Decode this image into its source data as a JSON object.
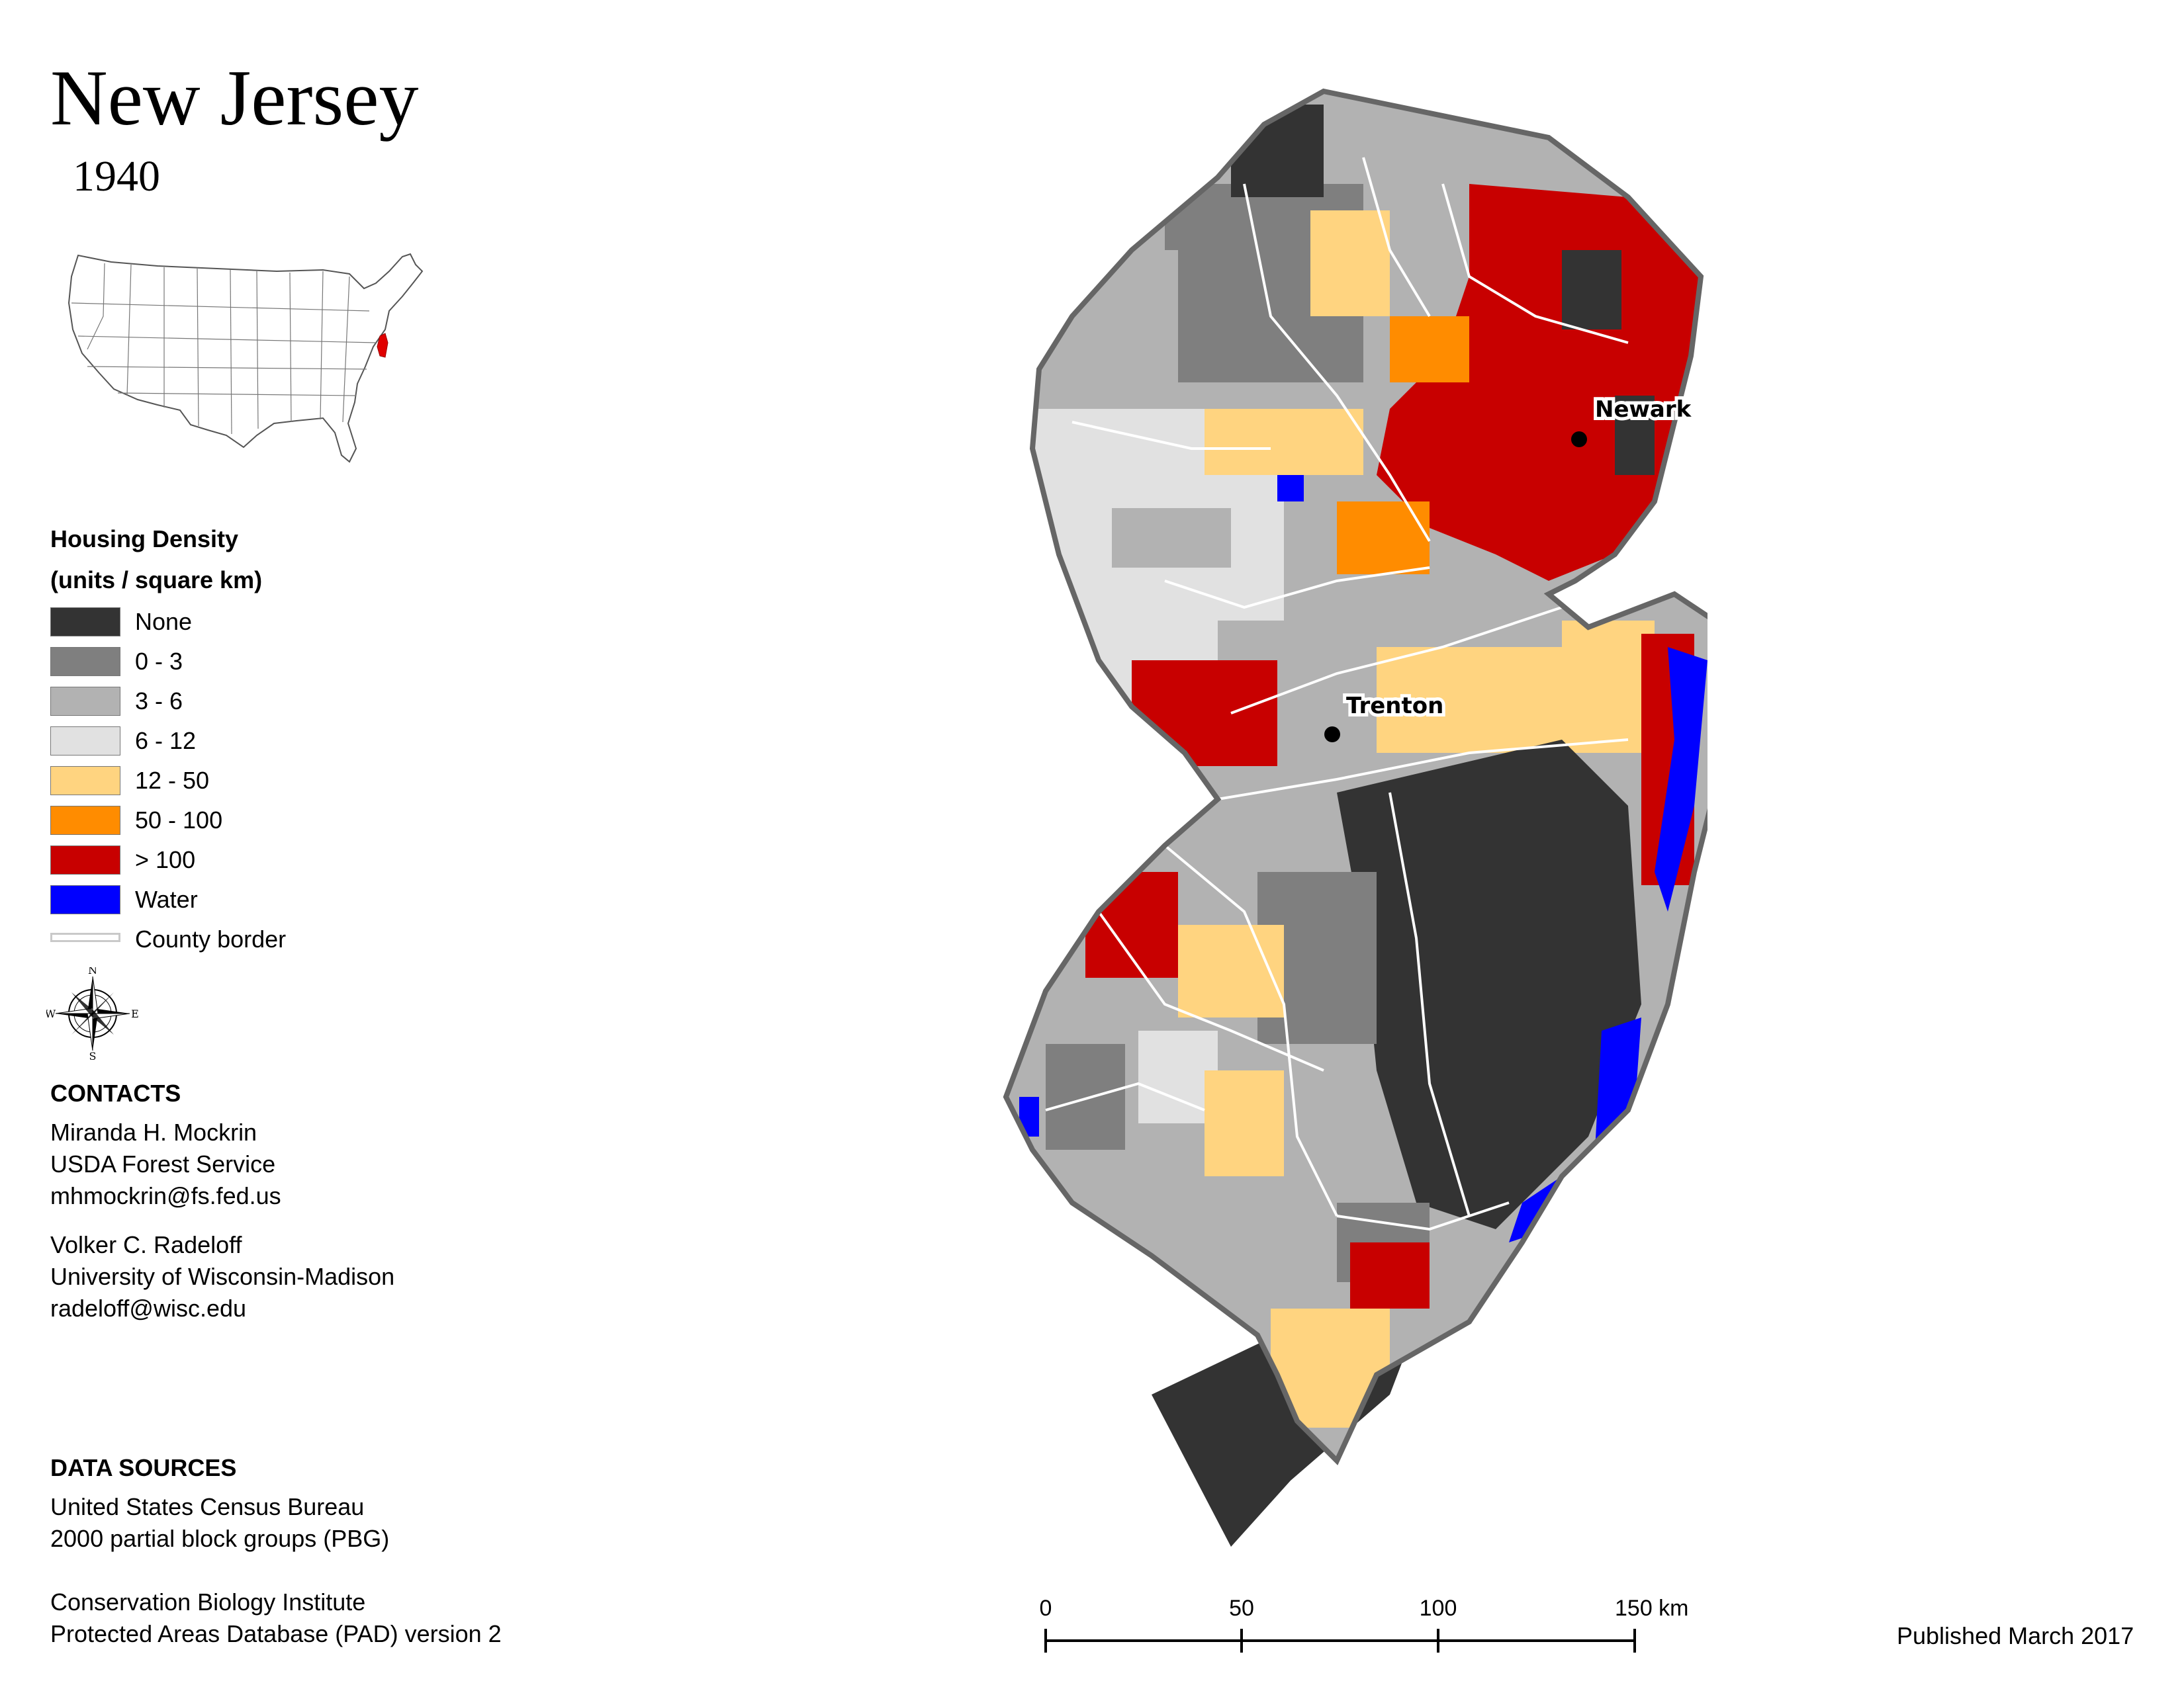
{
  "header": {
    "title": "New Jersey",
    "year": "1940"
  },
  "legend": {
    "title_line1": "Housing Density",
    "title_line2": "(units / square km)",
    "items": [
      {
        "label": "None",
        "color": "#333333"
      },
      {
        "label": "0 - 3",
        "color": "#7f7f7f"
      },
      {
        "label": "3 - 6",
        "color": "#b2b2b2"
      },
      {
        "label": "6 - 12",
        "color": "#e1e1e1"
      },
      {
        "label": "12 - 50",
        "color": "#ffd480"
      },
      {
        "label": "50 - 100",
        "color": "#ff8c00"
      },
      {
        "label": "> 100",
        "color": "#c80000"
      },
      {
        "label": "Water",
        "color": "#0000ff"
      }
    ],
    "county_border_label": "County border"
  },
  "compass": {
    "n": "N",
    "s": "S",
    "e": "E",
    "w": "W"
  },
  "contacts": {
    "heading": "CONTACTS",
    "person1": [
      "Miranda H. Mockrin",
      "USDA Forest Service",
      "mhmockrin@fs.fed.us"
    ],
    "person2": [
      "Volker C. Radeloff",
      "University of Wisconsin-Madison",
      "radeloff@wisc.edu"
    ]
  },
  "data_sources": {
    "heading": "DATA SOURCES",
    "source1": [
      "United States Census Bureau",
      "2000 partial block groups (PBG)"
    ],
    "source2": [
      "Conservation Biology Institute",
      "Protected Areas Database (PAD) version 2"
    ]
  },
  "map": {
    "cities": [
      {
        "name": "Newark"
      },
      {
        "name": "Trenton"
      }
    ]
  },
  "scale_bar": {
    "ticks": [
      "0",
      "50",
      "100",
      "150 km"
    ]
  },
  "published": "Published March 2017"
}
